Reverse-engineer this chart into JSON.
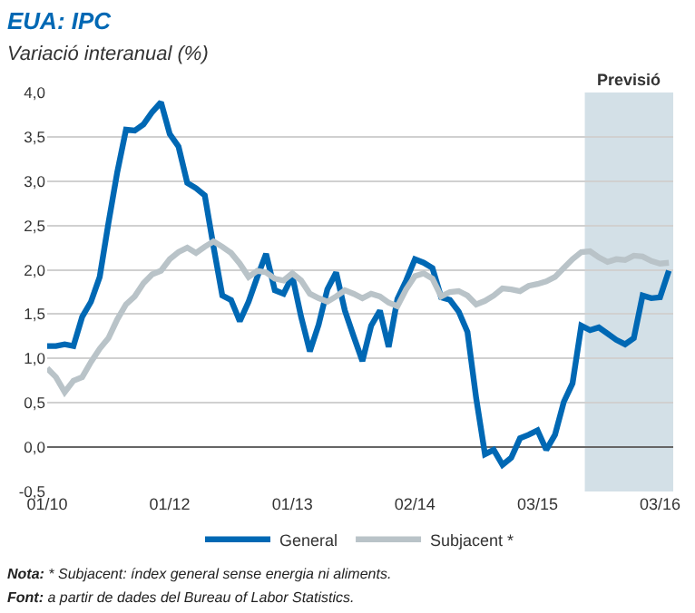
{
  "chart_data": {
    "type": "line",
    "title": "EUA: IPC",
    "subtitle": "Variació interanual (%)",
    "categories": [
      "01/10",
      null,
      null,
      null,
      null,
      null,
      null,
      null,
      null,
      null,
      null,
      null,
      null,
      null,
      "01/12",
      null,
      null,
      null,
      null,
      null,
      null,
      null,
      null,
      null,
      null,
      null,
      null,
      null,
      "01/13",
      null,
      null,
      null,
      null,
      null,
      null,
      null,
      null,
      null,
      null,
      null,
      null,
      null,
      "02/14",
      null,
      null,
      null,
      null,
      null,
      null,
      null,
      null,
      null,
      null,
      null,
      null,
      null,
      "03/15",
      null,
      null,
      null,
      null,
      null,
      null,
      null,
      null,
      null,
      null,
      null,
      null,
      null,
      "03/16",
      null
    ],
    "ylim": [
      -0.5,
      4.0
    ],
    "yticks": [
      {
        "value": -0.5,
        "label": "-0,5"
      },
      {
        "value": 0,
        "label": "0,0"
      },
      {
        "value": 0.5,
        "label": "0,5"
      },
      {
        "value": 1,
        "label": "1,0"
      },
      {
        "value": 1.5,
        "label": "1,5"
      },
      {
        "value": 2,
        "label": "2,0"
      },
      {
        "value": 2.5,
        "label": "2,5"
      },
      {
        "value": 3,
        "label": "3,0"
      },
      {
        "value": 3.5,
        "label": "3,5"
      },
      {
        "value": 4,
        "label": "4,0"
      }
    ],
    "grid": "y",
    "legend": "bottom",
    "line_style": "solid",
    "series": [
      {
        "name": "General",
        "color": "#0068b4",
        "values": [
          1.14,
          1.14,
          1.16,
          1.14,
          1.47,
          1.64,
          1.92,
          2.53,
          3.1,
          3.58,
          3.57,
          3.64,
          3.78,
          3.89,
          3.53,
          3.39,
          2.98,
          2.92,
          2.84,
          2.26,
          1.71,
          1.66,
          1.42,
          1.64,
          1.92,
          2.18,
          1.77,
          1.73,
          1.93,
          1.47,
          1.08,
          1.38,
          1.78,
          1.97,
          1.54,
          1.25,
          0.97,
          1.37,
          1.54,
          1.13,
          1.67,
          1.88,
          2.12,
          2.08,
          2.02,
          1.69,
          1.66,
          1.53,
          1.3,
          0.55,
          -0.08,
          -0.03,
          -0.2,
          -0.12,
          0.1,
          0.14,
          0.19,
          -0.03,
          0.14,
          0.51,
          0.72,
          1.37,
          1.32,
          1.35,
          1.28,
          1.21,
          1.16,
          1.23,
          1.71,
          1.68,
          1.69,
          1.99
        ]
      },
      {
        "name": "Subjacent *",
        "color": "#b9c3c8",
        "values": [
          0.89,
          0.79,
          0.62,
          0.75,
          0.79,
          0.96,
          1.11,
          1.23,
          1.44,
          1.61,
          1.7,
          1.85,
          1.95,
          1.99,
          2.12,
          2.2,
          2.25,
          2.19,
          2.26,
          2.32,
          2.26,
          2.19,
          2.07,
          1.92,
          1.99,
          1.97,
          1.9,
          1.88,
          1.96,
          1.88,
          1.73,
          1.68,
          1.64,
          1.7,
          1.77,
          1.73,
          1.68,
          1.73,
          1.7,
          1.63,
          1.59,
          1.78,
          1.93,
          1.96,
          1.9,
          1.7,
          1.75,
          1.76,
          1.71,
          1.61,
          1.65,
          1.71,
          1.79,
          1.78,
          1.76,
          1.82,
          1.84,
          1.87,
          1.92,
          2.02,
          2.12,
          2.2,
          2.21,
          2.14,
          2.09,
          2.12,
          2.11,
          2.16,
          2.15,
          2.1,
          2.07,
          2.08
        ]
      }
    ],
    "annotations": [
      "Previsió",
      "Nota: * Subjacent: índex general sense energia ni aliments.",
      "Font: a partir de dades del Bureau of Labor Statistics."
    ]
  }
}
